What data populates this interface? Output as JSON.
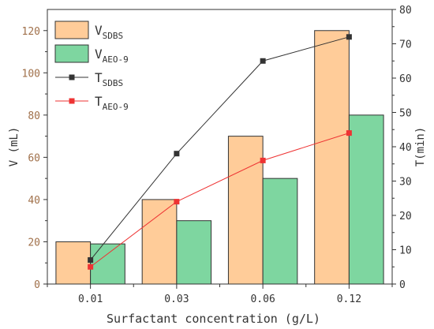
{
  "chart_data": {
    "type": "bar",
    "categories": [
      "0.01",
      "0.03",
      "0.06",
      "0.12"
    ],
    "xlabel": "Surfactant concentration (g/L)",
    "ylabel_left": "V (mL)",
    "ylabel_right": "T(min)",
    "ylim_left": [
      0,
      130
    ],
    "ylim_right": [
      0,
      80
    ],
    "yticks_left": [
      "0",
      "20",
      "40",
      "60",
      "80",
      "100",
      "120"
    ],
    "yticks_right": [
      "0",
      "10",
      "20",
      "30",
      "40",
      "50",
      "60",
      "70",
      "80"
    ],
    "bar_series": [
      {
        "name_main": "V",
        "name_sub": "SDBS",
        "axis": "left",
        "color": "#FFCC99",
        "values": [
          20,
          40,
          70,
          120
        ]
      },
      {
        "name_main": "V",
        "name_sub": "AEO-9",
        "axis": "left",
        "color": "#7ED6A0",
        "values": [
          19,
          30,
          50,
          80
        ]
      }
    ],
    "line_series": [
      {
        "name_main": "T",
        "name_sub": "SDBS",
        "axis": "right",
        "color": "#333333",
        "values": [
          7,
          38,
          65,
          72
        ]
      },
      {
        "name_main": "T",
        "name_sub": "AEO-9",
        "axis": "right",
        "color": "#EE3333",
        "values": [
          5,
          24,
          36,
          44
        ]
      }
    ],
    "left_axis_color": "#A0704A",
    "legend_position": "top-left"
  }
}
